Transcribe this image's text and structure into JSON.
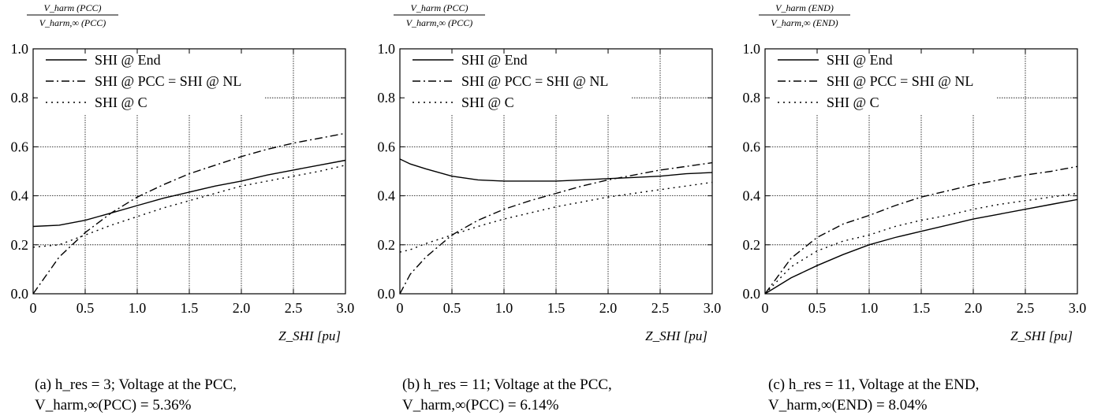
{
  "chart_data": [
    {
      "type": "line",
      "title_numerator": "V_harm (PCC)",
      "title_denominator": "V_harm,∞ (PCC)",
      "xlabel": "Z_SHI [pu]",
      "xlim": [
        0,
        3.0
      ],
      "ylim": [
        0,
        1.0
      ],
      "xticks": [
        "0",
        "0.5",
        "1.0",
        "1.5",
        "2.0",
        "2.5",
        "3.0"
      ],
      "yticks": [
        "0.0",
        "0.2",
        "0.4",
        "0.6",
        "0.8",
        "1.0"
      ],
      "grid": true,
      "legend_position": "top-left",
      "x": [
        0,
        0.25,
        0.5,
        0.75,
        1.0,
        1.25,
        1.5,
        1.75,
        2.0,
        2.25,
        2.5,
        2.75,
        3.0
      ],
      "series": [
        {
          "name": "SHI @ End",
          "style": "solid",
          "values": [
            0.275,
            0.28,
            0.3,
            0.33,
            0.36,
            0.39,
            0.415,
            0.44,
            0.46,
            0.485,
            0.505,
            0.525,
            0.545
          ]
        },
        {
          "name": "SHI @ PCC = SHI @ NL",
          "style": "dashdot",
          "values": [
            0.0,
            0.15,
            0.25,
            0.33,
            0.395,
            0.445,
            0.49,
            0.525,
            0.56,
            0.59,
            0.615,
            0.635,
            0.655
          ]
        },
        {
          "name": "SHI @ C",
          "style": "dotted",
          "values": [
            0.19,
            0.2,
            0.24,
            0.28,
            0.315,
            0.35,
            0.38,
            0.41,
            0.44,
            0.46,
            0.48,
            0.5,
            0.525
          ]
        }
      ],
      "caption_line1": "(a)  h_res  =  3;  Voltage  at  the  PCC,",
      "caption_line2": "V_harm,∞(PCC) = 5.36%"
    },
    {
      "type": "line",
      "title_numerator": "V_harm (PCC)",
      "title_denominator": "V_harm,∞ (PCC)",
      "xlabel": "Z_SHI [pu]",
      "xlim": [
        0,
        3.0
      ],
      "ylim": [
        0,
        1.0
      ],
      "xticks": [
        "0",
        "0.5",
        "1.0",
        "1.5",
        "2.0",
        "2.5",
        "3.0"
      ],
      "yticks": [
        "0.0",
        "0.2",
        "0.4",
        "0.6",
        "0.8",
        "1.0"
      ],
      "grid": true,
      "legend_position": "top-left",
      "x": [
        0,
        0.1,
        0.25,
        0.5,
        0.75,
        1.0,
        1.25,
        1.5,
        1.75,
        2.0,
        2.25,
        2.5,
        2.75,
        3.0
      ],
      "series": [
        {
          "name": "SHI @ End",
          "style": "solid",
          "values": [
            0.55,
            0.53,
            0.51,
            0.48,
            0.465,
            0.46,
            0.46,
            0.46,
            0.465,
            0.47,
            0.475,
            0.48,
            0.49,
            0.495
          ]
        },
        {
          "name": "SHI @ PCC = SHI @ NL",
          "style": "dashdot",
          "values": [
            0.0,
            0.08,
            0.15,
            0.24,
            0.3,
            0.345,
            0.38,
            0.41,
            0.44,
            0.465,
            0.485,
            0.505,
            0.52,
            0.535
          ]
        },
        {
          "name": "SHI @ C",
          "style": "dotted",
          "values": [
            0.17,
            0.18,
            0.205,
            0.24,
            0.275,
            0.305,
            0.33,
            0.355,
            0.375,
            0.395,
            0.41,
            0.425,
            0.44,
            0.455
          ]
        }
      ],
      "caption_line1": "(b)  h_res  =  11;  Voltage  at  the  PCC,",
      "caption_line2": "V_harm,∞(PCC) = 6.14%"
    },
    {
      "type": "line",
      "title_numerator": "V_harm (END)",
      "title_denominator": "V_harm,∞ (END)",
      "xlabel": "Z_SHI [pu]",
      "xlim": [
        0,
        3.0
      ],
      "ylim": [
        0,
        1.0
      ],
      "xticks": [
        "0",
        "0.5",
        "1.0",
        "1.5",
        "2.0",
        "2.5",
        "3.0"
      ],
      "yticks": [
        "0.0",
        "0.2",
        "0.4",
        "0.6",
        "0.8",
        "1.0"
      ],
      "grid": true,
      "legend_position": "top-left",
      "x": [
        0,
        0.25,
        0.5,
        0.75,
        1.0,
        1.25,
        1.5,
        1.75,
        2.0,
        2.25,
        2.5,
        2.75,
        3.0
      ],
      "series": [
        {
          "name": "SHI @ End",
          "style": "solid",
          "values": [
            0.0,
            0.065,
            0.115,
            0.16,
            0.2,
            0.23,
            0.255,
            0.28,
            0.305,
            0.325,
            0.345,
            0.365,
            0.385
          ]
        },
        {
          "name": "SHI @ PCC = SHI @ NL",
          "style": "dashdot",
          "values": [
            0.0,
            0.145,
            0.23,
            0.285,
            0.32,
            0.36,
            0.395,
            0.42,
            0.445,
            0.465,
            0.485,
            0.5,
            0.52
          ]
        },
        {
          "name": "SHI @ C",
          "style": "dotted",
          "values": [
            0.0,
            0.11,
            0.175,
            0.215,
            0.24,
            0.275,
            0.3,
            0.32,
            0.345,
            0.365,
            0.38,
            0.395,
            0.41
          ]
        }
      ],
      "caption_line1": "(c)  h_res  =  11,  Voltage  at  the  END,",
      "caption_line2": "V_harm,∞(END) = 8.04%"
    }
  ]
}
